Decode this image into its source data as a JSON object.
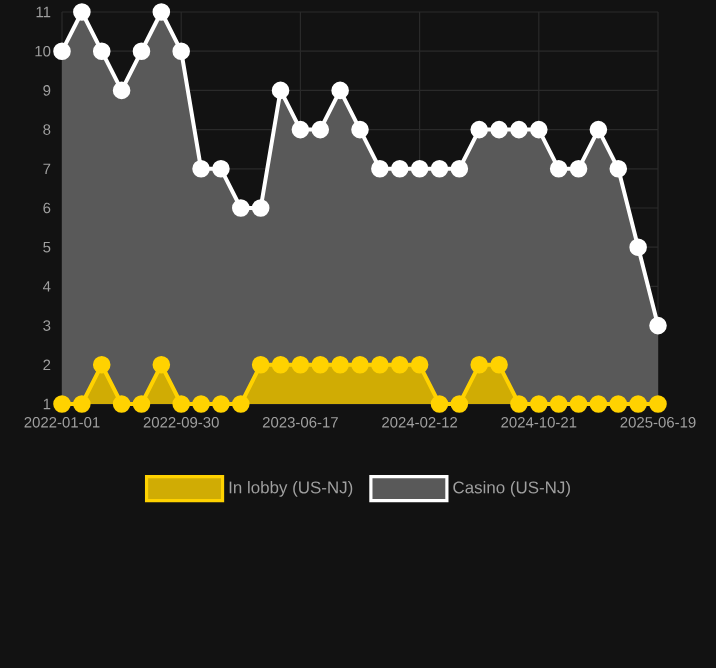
{
  "chart_data": {
    "type": "area",
    "categories": [
      "2022-01-01",
      null,
      null,
      null,
      null,
      null,
      "2022-09-30",
      null,
      null,
      null,
      null,
      null,
      "2023-06-17",
      null,
      null,
      null,
      null,
      null,
      "2024-02-12",
      null,
      null,
      null,
      null,
      null,
      "2024-10-21",
      null,
      null,
      null,
      null,
      null,
      "2025-06-19"
    ],
    "series": [
      {
        "name": "In lobby (US-NJ)",
        "color": "#ffd200",
        "values": [
          1,
          1,
          2,
          1,
          1,
          2,
          1,
          1,
          1,
          1,
          2,
          2,
          2,
          2,
          2,
          2,
          2,
          2,
          2,
          1,
          1,
          2,
          2,
          1,
          1,
          1,
          1,
          1,
          1,
          1,
          1
        ]
      },
      {
        "name": "Casino (US-NJ)",
        "color": "#ffffff",
        "values": [
          10,
          11,
          10,
          9,
          10,
          11,
          10,
          7,
          7,
          6,
          6,
          9,
          8,
          8,
          9,
          8,
          7,
          7,
          7,
          7,
          7,
          8,
          8,
          8,
          8,
          7,
          7,
          8,
          7,
          5,
          3
        ]
      }
    ],
    "ylim": [
      1,
      11
    ],
    "yticks": [
      1,
      2,
      3,
      4,
      5,
      6,
      7,
      8,
      9,
      10,
      11
    ],
    "grid": true,
    "legend": "bottom",
    "marker": "circle"
  }
}
